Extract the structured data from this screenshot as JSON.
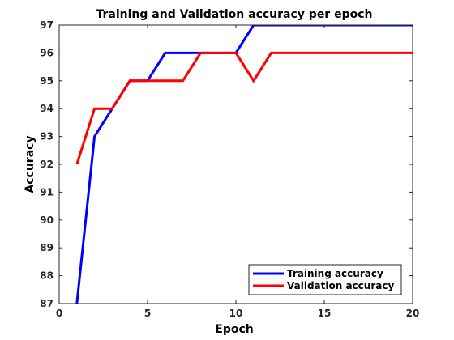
{
  "chart_data": {
    "type": "line",
    "title": "Training and Validation accuracy per epoch",
    "xlabel": "Epoch",
    "ylabel": "Accuracy",
    "xlim": [
      0,
      20
    ],
    "ylim": [
      87,
      97
    ],
    "xticks": [
      0,
      5,
      10,
      15,
      20
    ],
    "yticks": [
      87,
      88,
      89,
      90,
      91,
      92,
      93,
      94,
      95,
      96,
      97
    ],
    "grid": false,
    "legend_position": "bottom-right",
    "series": [
      {
        "name": "Training accuracy",
        "color": "#0000ff",
        "x": [
          1,
          2,
          3,
          4,
          5,
          6,
          7,
          8,
          9,
          10,
          11,
          12,
          13,
          14,
          15,
          16,
          17,
          18,
          19,
          20
        ],
        "values": [
          87,
          93,
          94,
          95,
          95,
          96,
          96,
          96,
          96,
          96,
          97,
          97,
          97,
          97,
          97,
          97,
          97,
          97,
          97,
          97
        ]
      },
      {
        "name": "Validation accuracy",
        "color": "#ff0000",
        "x": [
          1,
          2,
          3,
          4,
          5,
          6,
          7,
          8,
          9,
          10,
          11,
          12,
          13,
          14,
          15,
          16,
          17,
          18,
          19,
          20
        ],
        "values": [
          92,
          94,
          94,
          95,
          95,
          95,
          95,
          96,
          96,
          96,
          95,
          96,
          96,
          96,
          96,
          96,
          96,
          96,
          96,
          96
        ]
      }
    ]
  }
}
